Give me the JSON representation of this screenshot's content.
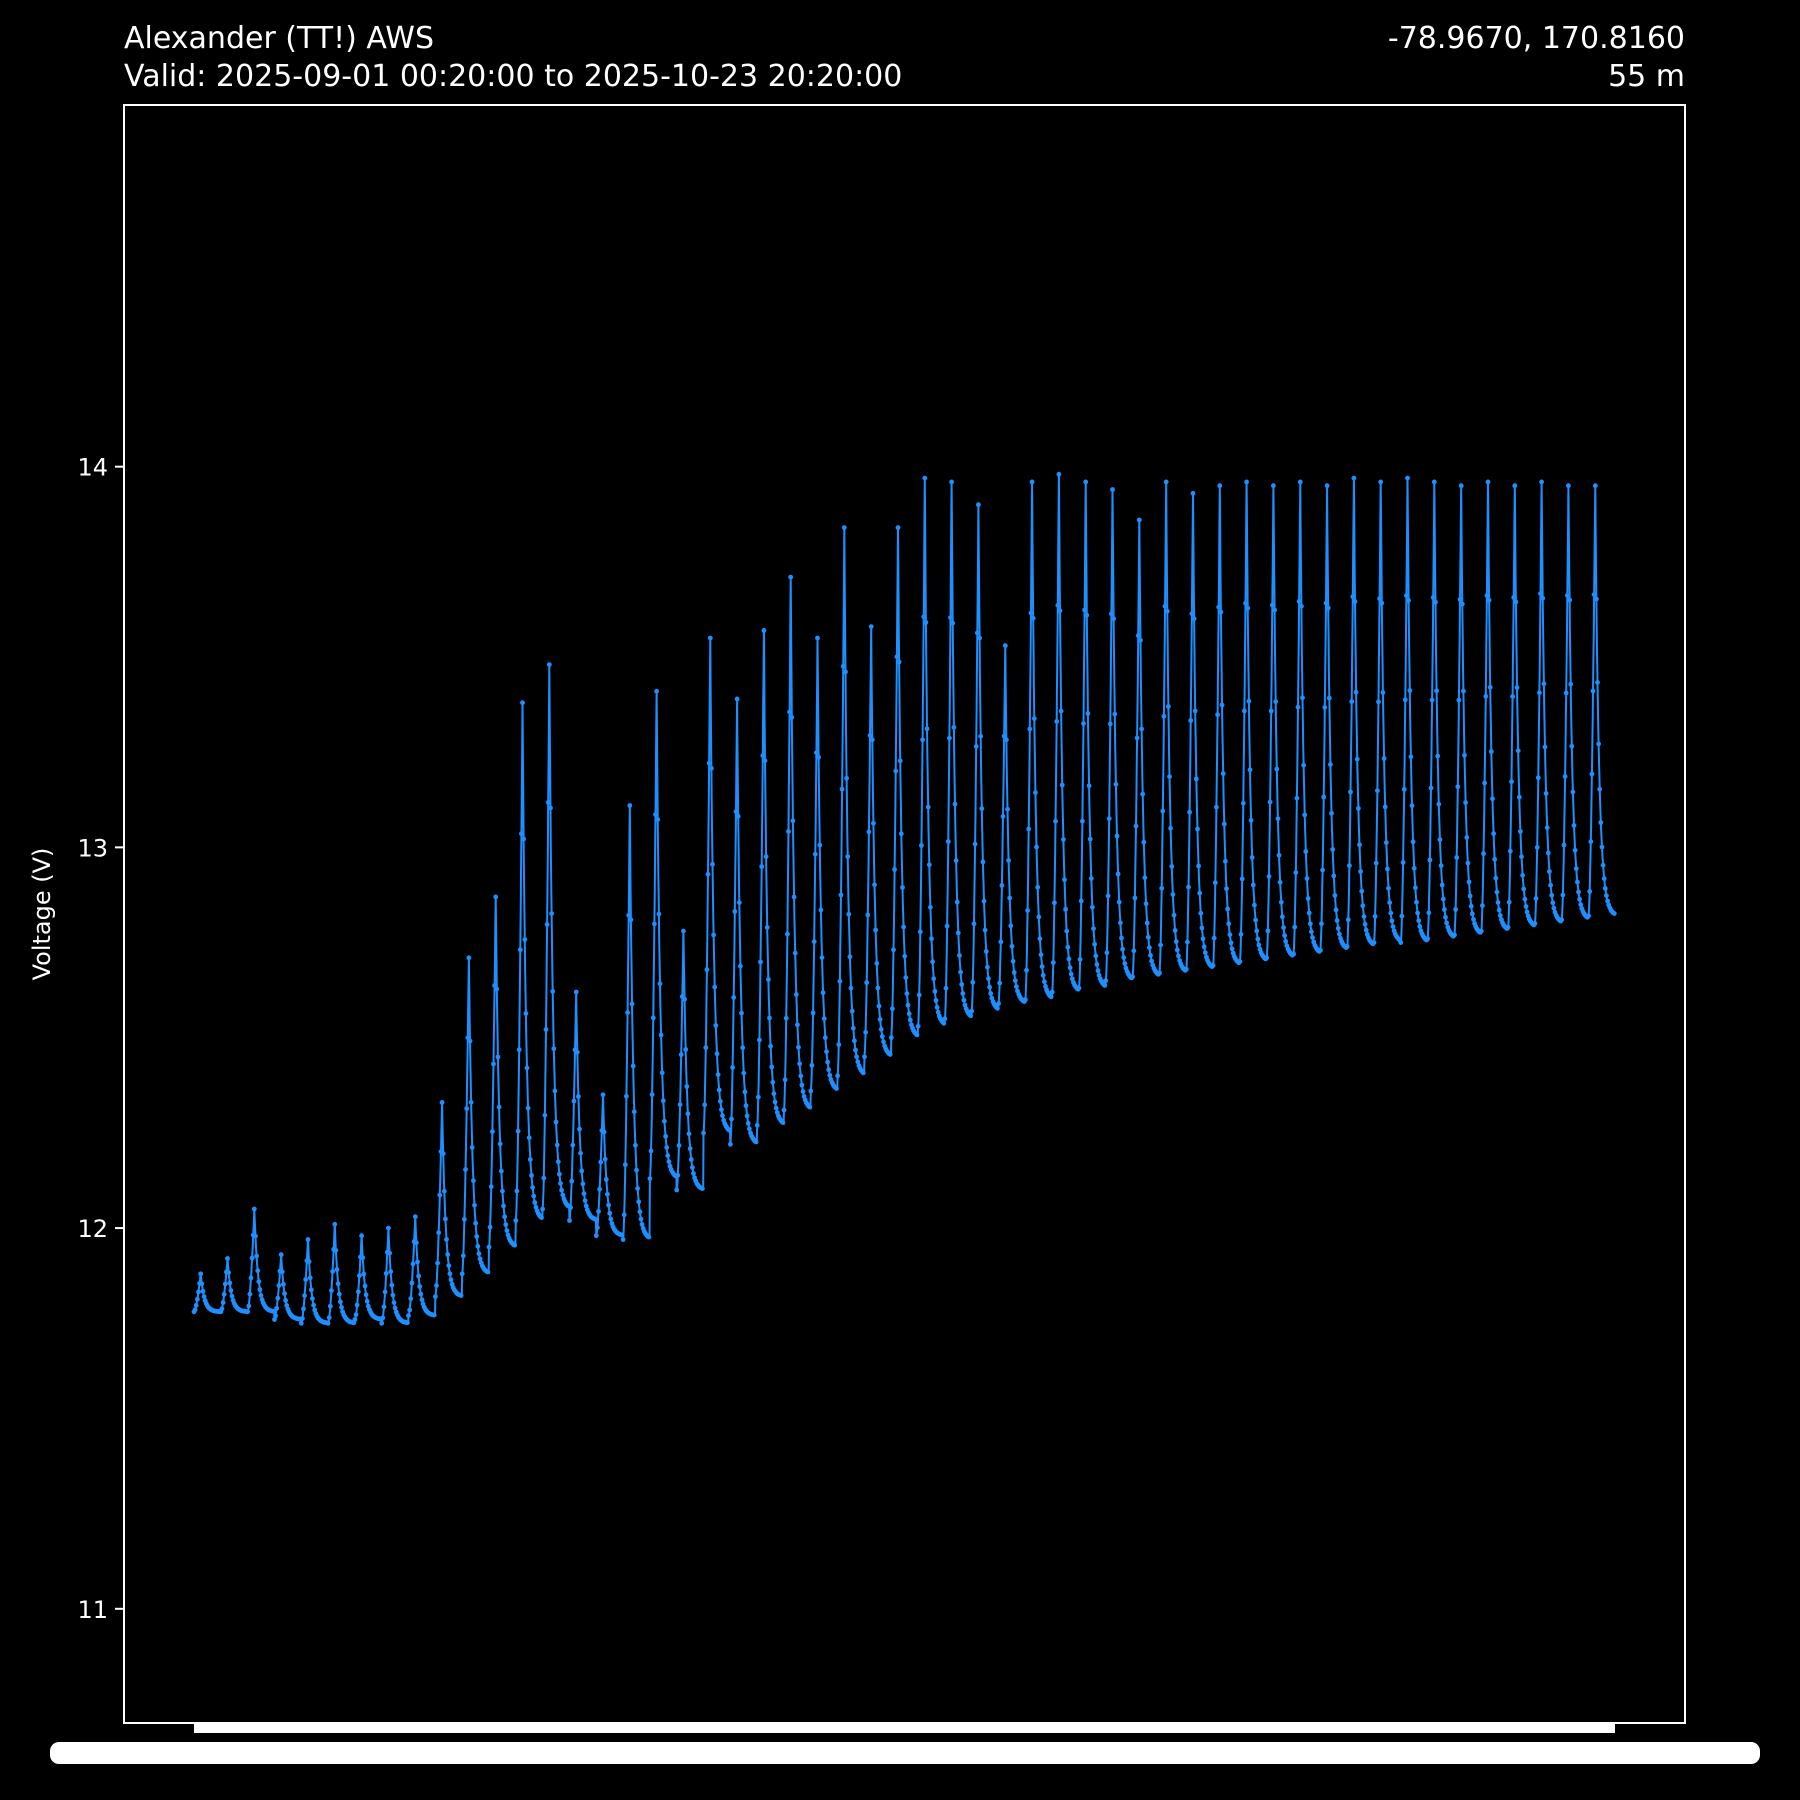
{
  "header": {
    "station": "Alexander (TT!) AWS",
    "valid": "Valid: 2025-09-01 00:20:00 to 2025-10-23 20:20:00",
    "coords": "-78.9670, 170.8160",
    "elevation": "55 m"
  },
  "colors": {
    "series": "#1e8fff",
    "frame": "#ffffff",
    "background": "#000000"
  },
  "chart_data": {
    "type": "line",
    "ylabel": "Voltage (V)",
    "xlabel": "",
    "ylim": [
      10.7,
      14.95
    ],
    "yticks": [
      11,
      12,
      13,
      14
    ],
    "x_start": "2025-09-01 00:20:00",
    "x_end": "2025-10-23 20:20:00",
    "series": [
      {
        "marker": "dot",
        "daily_max": [
          11.88,
          11.92,
          12.05,
          11.93,
          11.97,
          12.01,
          11.98,
          12.0,
          12.03,
          12.33,
          12.71,
          12.87,
          13.38,
          13.48,
          12.62,
          12.35,
          13.11,
          13.41,
          12.78,
          13.55,
          13.39,
          13.57,
          13.71,
          13.55,
          13.84,
          13.58,
          13.84,
          13.97,
          13.96,
          13.9,
          13.53,
          13.96,
          13.98,
          13.96,
          13.94,
          13.86,
          13.96,
          13.93,
          13.95,
          13.96,
          13.95,
          13.96,
          13.95,
          13.97,
          13.96,
          13.97,
          13.96,
          13.95,
          13.96,
          13.95,
          13.96,
          13.95,
          13.95
        ],
        "daily_min": [
          11.78,
          11.78,
          11.78,
          11.76,
          11.75,
          11.75,
          11.76,
          11.75,
          11.77,
          11.82,
          11.88,
          11.95,
          12.02,
          12.05,
          12.02,
          11.98,
          11.97,
          12.13,
          12.1,
          12.25,
          12.22,
          12.27,
          12.31,
          12.36,
          12.4,
          12.45,
          12.5,
          12.53,
          12.55,
          12.57,
          12.59,
          12.6,
          12.62,
          12.63,
          12.65,
          12.66,
          12.67,
          12.68,
          12.69,
          12.7,
          12.71,
          12.72,
          12.73,
          12.74,
          12.75,
          12.75,
          12.76,
          12.77,
          12.78,
          12.79,
          12.8,
          12.81,
          12.82
        ]
      }
    ]
  }
}
